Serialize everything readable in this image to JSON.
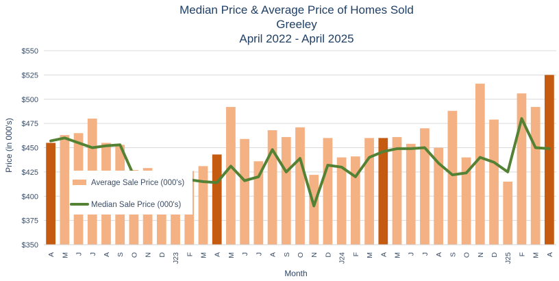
{
  "chart_data": {
    "type": "bar",
    "title_lines": [
      "Median Price & Average Price of Homes Sold",
      "Greeley",
      "April 2022 - April 2025"
    ],
    "xlabel": "Month",
    "ylabel": "Price (in 000's)",
    "ylim": [
      350,
      550
    ],
    "y_ticks": [
      350,
      375,
      400,
      425,
      450,
      475,
      500,
      525,
      550
    ],
    "y_tick_labels": [
      "$350",
      "$375",
      "$400",
      "$425",
      "$450",
      "$475",
      "$500",
      "$525",
      "$550"
    ],
    "grid": true,
    "legend_position": "left-center",
    "categories": [
      "A",
      "M",
      "J",
      "J",
      "A",
      "S",
      "O",
      "N",
      "D",
      "J23",
      "F",
      "M",
      "A",
      "M",
      "J",
      "J",
      "A",
      "S",
      "O",
      "N",
      "D",
      "J24",
      "F",
      "M",
      "A",
      "M",
      "J",
      "J",
      "A",
      "S",
      "O",
      "N",
      "D",
      "J25",
      "F",
      "M",
      "A"
    ],
    "series": [
      {
        "name": "Average Sale Price (000's)",
        "type": "bar",
        "color": "#f4b183",
        "highlight_color": "#c55a11",
        "highlight_indices": [
          0,
          12,
          24,
          36
        ],
        "values": [
          455,
          463,
          465,
          480,
          455,
          453,
          427,
          429,
          413,
          418,
          426,
          431,
          443,
          492,
          459,
          436,
          468,
          461,
          471,
          422,
          460,
          440,
          441,
          460,
          460,
          461,
          454,
          470,
          450,
          488,
          440,
          516,
          479,
          415,
          506,
          492,
          525
        ]
      },
      {
        "name": "Median Sale Price (000's)",
        "type": "line",
        "color": "#548235",
        "values": [
          457,
          460,
          455,
          450,
          452,
          453,
          421,
          420,
          420,
          418,
          417,
          415,
          414,
          431,
          416,
          420,
          448,
          425,
          439,
          390,
          432,
          430,
          420,
          440,
          446,
          449,
          449,
          450,
          434,
          422,
          424,
          440,
          435,
          425,
          480,
          450,
          449
        ]
      }
    ]
  }
}
